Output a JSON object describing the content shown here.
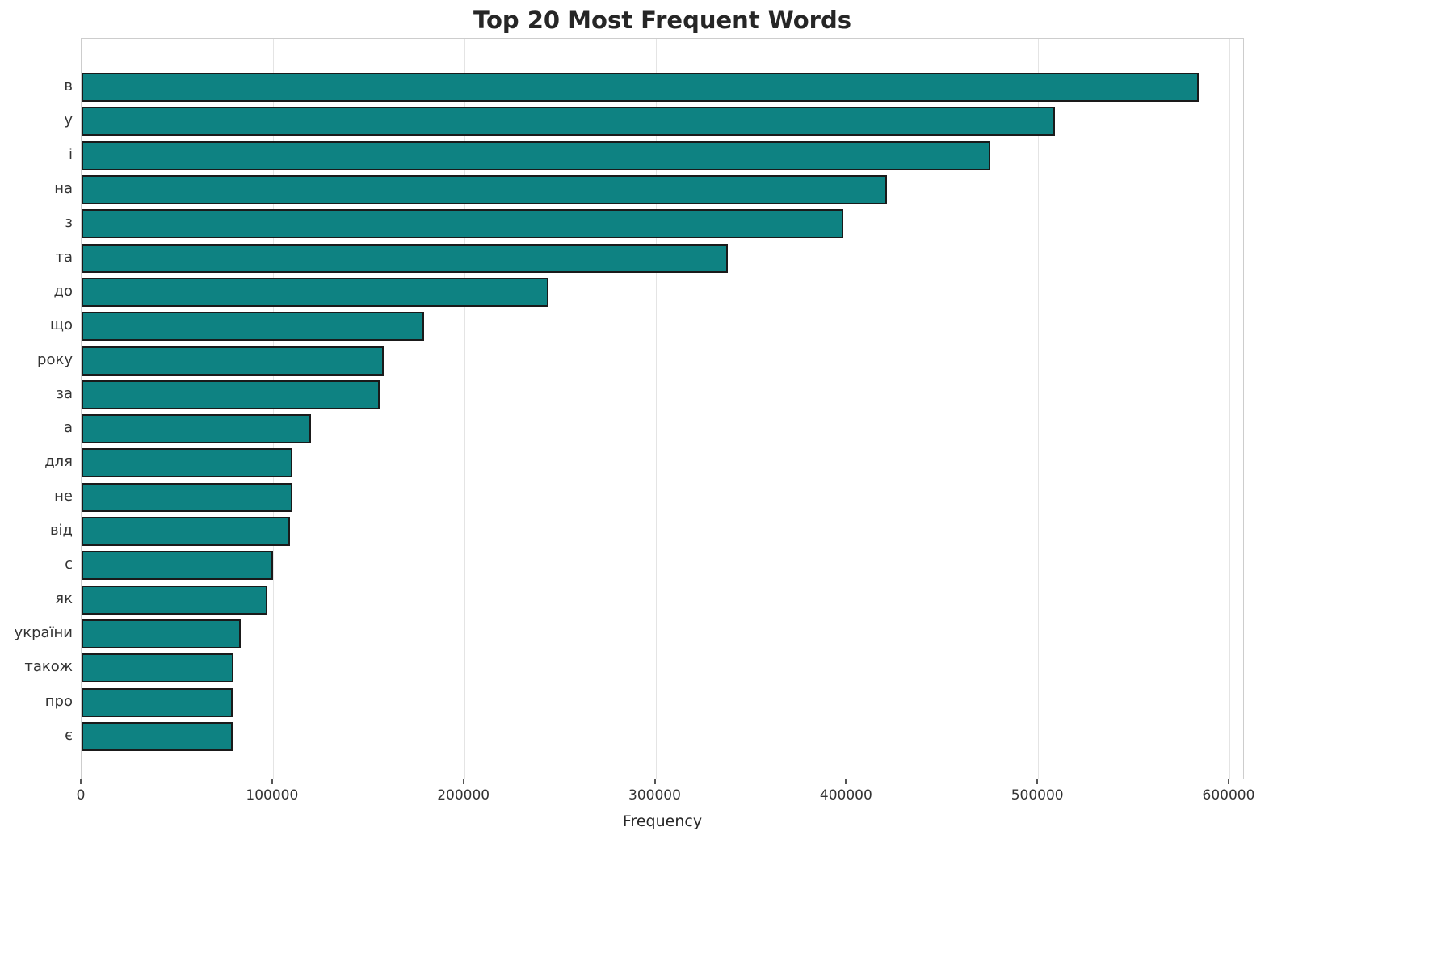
{
  "chart_data": {
    "type": "bar",
    "orientation": "horizontal",
    "title": "Top 20 Most Frequent Words",
    "xlabel": "Frequency",
    "ylabel": "",
    "categories": [
      "в",
      "у",
      "і",
      "на",
      "з",
      "та",
      "до",
      "що",
      "року",
      "за",
      "а",
      "для",
      "не",
      "від",
      "с",
      "як",
      "україни",
      "також",
      "про",
      "є"
    ],
    "values": [
      584000,
      509000,
      475000,
      421000,
      398000,
      338000,
      244000,
      179000,
      158000,
      156000,
      120000,
      110000,
      110000,
      109000,
      100000,
      97000,
      83000,
      79500,
      79000,
      79000
    ],
    "xlim": [
      0,
      600000
    ],
    "xticks": [
      0,
      100000,
      200000,
      300000,
      400000,
      500000,
      600000
    ],
    "grid": true,
    "legend": "none",
    "bar_color": "#0e8282",
    "bar_edge_color": "#1a1a1a",
    "grid_color": "#e4e4e4",
    "text_color": "#333333"
  }
}
